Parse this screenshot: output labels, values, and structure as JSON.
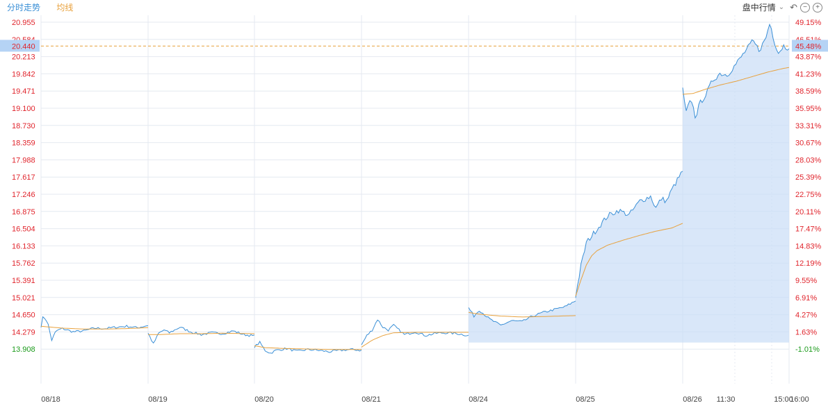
{
  "legend": {
    "time_label": "分时走势",
    "avg_label": "均线"
  },
  "header": {
    "mode_label": "盘中行情",
    "chevron": "chevron-down-icon",
    "undo_icon": "undo-icon",
    "zoom_out_icon": "zoom-out-icon",
    "zoom_in_icon": "zoom-in-icon"
  },
  "colors": {
    "price": "#3a8fd6",
    "avg": "#e8a13c",
    "fill": "#c9ddf7",
    "up": "#e0242c",
    "down": "#1a9a1a",
    "ref": "#e8a13c",
    "grid": "#e4e9f0",
    "current_box": "#b5d3f5"
  },
  "chart_data": {
    "type": "line",
    "price_ticks": [
      "20.955",
      "20.584",
      "20.213",
      "19.842",
      "19.471",
      "19.100",
      "18.730",
      "18.359",
      "17.988",
      "17.617",
      "17.246",
      "16.875",
      "16.504",
      "16.133",
      "15.762",
      "15.391",
      "15.021",
      "14.650",
      "14.279",
      "13.908"
    ],
    "pct_ticks": [
      "49.15%",
      "46.51%",
      "43.87%",
      "41.23%",
      "38.59%",
      "35.95%",
      "33.31%",
      "30.67%",
      "28.03%",
      "25.39%",
      "22.75%",
      "20.11%",
      "17.47%",
      "14.83%",
      "12.19%",
      "9.55%",
      "6.91%",
      "4.27%",
      "1.63%",
      "-1.01%"
    ],
    "ylim": [
      13.75,
      21.16
    ],
    "prev_close": 14.05,
    "current_price": "20.440",
    "current_pct": "45.48%",
    "days": [
      "08/18",
      "08/19",
      "08/20",
      "08/21",
      "08/24",
      "08/25",
      "08/26"
    ],
    "last_day_ticks": [
      "11:30",
      "15:00",
      "16:00"
    ],
    "series": [
      {
        "name": "分时走势",
        "day_paths": [
          [
            [
              0,
              14.4
            ],
            [
              0.02,
              14.62
            ],
            [
              0.06,
              14.5
            ],
            [
              0.1,
              14.1
            ],
            [
              0.14,
              14.3
            ],
            [
              0.2,
              14.35
            ],
            [
              0.3,
              14.28
            ],
            [
              0.4,
              14.3
            ],
            [
              0.5,
              14.36
            ],
            [
              0.6,
              14.35
            ],
            [
              0.7,
              14.38
            ],
            [
              0.8,
              14.4
            ],
            [
              0.9,
              14.37
            ],
            [
              1,
              14.42
            ]
          ],
          [
            [
              0,
              14.25
            ],
            [
              0.05,
              14.02
            ],
            [
              0.1,
              14.25
            ],
            [
              0.15,
              14.32
            ],
            [
              0.2,
              14.26
            ],
            [
              0.3,
              14.38
            ],
            [
              0.4,
              14.28
            ],
            [
              0.5,
              14.22
            ],
            [
              0.6,
              14.26
            ],
            [
              0.7,
              14.24
            ],
            [
              0.8,
              14.3
            ],
            [
              0.9,
              14.22
            ],
            [
              1,
              14.19
            ]
          ],
          [
            [
              0,
              13.96
            ],
            [
              0.05,
              14.05
            ],
            [
              0.1,
              13.88
            ],
            [
              0.15,
              13.82
            ],
            [
              0.2,
              13.88
            ],
            [
              0.3,
              13.92
            ],
            [
              0.4,
              13.86
            ],
            [
              0.5,
              13.9
            ],
            [
              0.6,
              13.88
            ],
            [
              0.7,
              13.85
            ],
            [
              0.8,
              13.88
            ],
            [
              0.9,
              13.9
            ],
            [
              1,
              13.88
            ]
          ],
          [
            [
              0,
              14.0
            ],
            [
              0.05,
              14.2
            ],
            [
              0.1,
              14.32
            ],
            [
              0.15,
              14.55
            ],
            [
              0.2,
              14.38
            ],
            [
              0.25,
              14.32
            ],
            [
              0.3,
              14.42
            ],
            [
              0.4,
              14.22
            ],
            [
              0.5,
              14.28
            ],
            [
              0.6,
              14.2
            ],
            [
              0.7,
              14.25
            ],
            [
              0.8,
              14.26
            ],
            [
              0.9,
              14.24
            ],
            [
              1,
              14.2
            ]
          ],
          [
            [
              0,
              14.8
            ],
            [
              0.05,
              14.62
            ],
            [
              0.1,
              14.75
            ],
            [
              0.2,
              14.55
            ],
            [
              0.3,
              14.42
            ],
            [
              0.4,
              14.52
            ],
            [
              0.5,
              14.5
            ],
            [
              0.6,
              14.62
            ],
            [
              0.7,
              14.7
            ],
            [
              0.8,
              14.76
            ],
            [
              0.9,
              14.82
            ],
            [
              1,
              14.95
            ]
          ],
          [
            [
              0,
              15.05
            ],
            [
              0.05,
              15.7
            ],
            [
              0.1,
              16.2
            ],
            [
              0.2,
              16.5
            ],
            [
              0.3,
              16.78
            ],
            [
              0.4,
              16.9
            ],
            [
              0.5,
              16.8
            ],
            [
              0.6,
              17.1
            ],
            [
              0.7,
              17.2
            ],
            [
              0.75,
              16.95
            ],
            [
              0.8,
              17.15
            ],
            [
              0.85,
              17.1
            ],
            [
              0.9,
              17.35
            ],
            [
              0.95,
              17.55
            ],
            [
              1,
              17.75
            ]
          ],
          [
            [
              0,
              19.5
            ],
            [
              0.03,
              19.0
            ],
            [
              0.08,
              19.3
            ],
            [
              0.12,
              18.9
            ],
            [
              0.16,
              19.2
            ],
            [
              0.22,
              19.4
            ],
            [
              0.28,
              19.7
            ],
            [
              0.35,
              19.85
            ],
            [
              0.42,
              19.82
            ],
            [
              0.5,
              20.05
            ],
            [
              0.58,
              20.3
            ],
            [
              0.66,
              20.55
            ],
            [
              0.72,
              20.35
            ],
            [
              0.78,
              20.6
            ],
            [
              0.82,
              20.95
            ],
            [
              0.86,
              20.55
            ],
            [
              0.9,
              20.3
            ],
            [
              0.95,
              20.45
            ],
            [
              0.98,
              20.4
            ],
            [
              1,
              20.44
            ]
          ]
        ]
      },
      {
        "name": "均线",
        "day_paths": [
          [
            [
              0,
              14.4
            ],
            [
              0.1,
              14.38
            ],
            [
              0.2,
              14.36
            ],
            [
              0.4,
              14.34
            ],
            [
              0.6,
              14.34
            ],
            [
              0.8,
              14.35
            ],
            [
              1,
              14.37
            ]
          ],
          [
            [
              0,
              14.22
            ],
            [
              0.1,
              14.22
            ],
            [
              0.3,
              14.24
            ],
            [
              0.5,
              14.24
            ],
            [
              0.7,
              14.25
            ],
            [
              1,
              14.24
            ]
          ],
          [
            [
              0,
              13.98
            ],
            [
              0.1,
              13.94
            ],
            [
              0.3,
              13.92
            ],
            [
              0.5,
              13.91
            ],
            [
              0.7,
              13.9
            ],
            [
              1,
              13.9
            ]
          ],
          [
            [
              0,
              13.95
            ],
            [
              0.1,
              14.1
            ],
            [
              0.2,
              14.2
            ],
            [
              0.3,
              14.26
            ],
            [
              0.5,
              14.27
            ],
            [
              0.7,
              14.27
            ],
            [
              1,
              14.27
            ]
          ],
          [
            [
              0,
              14.7
            ],
            [
              0.1,
              14.66
            ],
            [
              0.3,
              14.62
            ],
            [
              0.5,
              14.6
            ],
            [
              0.7,
              14.61
            ],
            [
              1,
              14.63
            ]
          ],
          [
            [
              0,
              15.05
            ],
            [
              0.05,
              15.4
            ],
            [
              0.1,
              15.72
            ],
            [
              0.15,
              15.92
            ],
            [
              0.2,
              16.03
            ],
            [
              0.3,
              16.15
            ],
            [
              0.45,
              16.26
            ],
            [
              0.6,
              16.36
            ],
            [
              0.75,
              16.45
            ],
            [
              0.9,
              16.52
            ],
            [
              1,
              16.62
            ]
          ],
          [
            [
              0,
              19.4
            ],
            [
              0.1,
              19.42
            ],
            [
              0.2,
              19.5
            ],
            [
              0.35,
              19.6
            ],
            [
              0.5,
              19.68
            ],
            [
              0.65,
              19.78
            ],
            [
              0.8,
              19.88
            ],
            [
              0.95,
              19.96
            ],
            [
              1,
              19.98
            ]
          ]
        ]
      }
    ]
  }
}
